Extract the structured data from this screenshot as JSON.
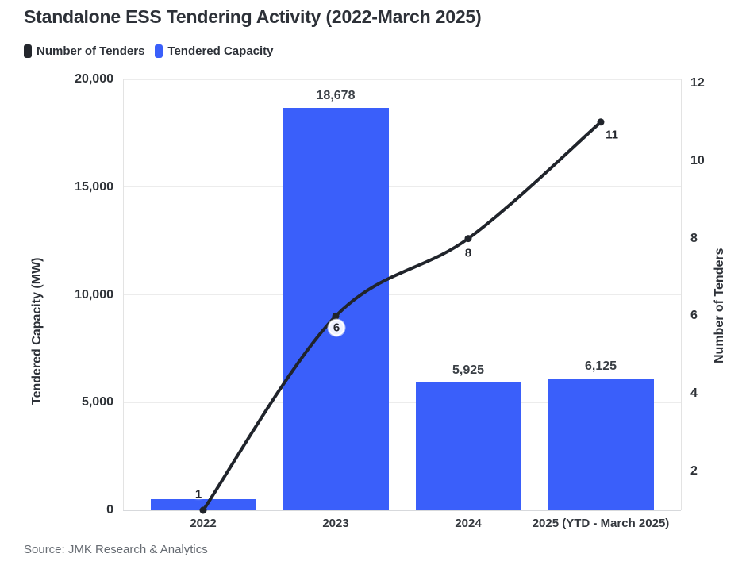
{
  "title": "Standalone ESS Tendering Activity (2022-March 2025)",
  "source": "Source: JMK Research & Analytics",
  "legend": {
    "items": [
      {
        "label": "Number of Tenders",
        "color": "#24272d"
      },
      {
        "label": "Tendered Capacity",
        "color": "#3a5ffa"
      }
    ]
  },
  "chart_data": {
    "type": "combo-bar-line",
    "title": "Standalone ESS Tendering Activity (2022-March 2025)",
    "categories": [
      "2022",
      "2023",
      "2024",
      "2025 (YTD - March 2025)"
    ],
    "series": [
      {
        "name": "Tendered Capacity",
        "chart": "bar",
        "axis": "left",
        "color": "#3a5ffa",
        "values": [
          500,
          18678,
          5925,
          6125
        ],
        "value_labels": [
          "",
          "18,678",
          "5,925",
          "6,125"
        ]
      },
      {
        "name": "Number of Tenders",
        "chart": "line",
        "axis": "right",
        "color": "#20242b",
        "values": [
          1,
          6,
          8,
          11
        ],
        "point_labels": [
          {
            "text": "1",
            "dx": -6,
            "dy": -20,
            "badge": false
          },
          {
            "text": "6",
            "dx": 1,
            "dy": 15,
            "badge": true
          },
          {
            "text": "8",
            "dx": 0,
            "dy": 18,
            "badge": false
          },
          {
            "text": "11",
            "dx": 14,
            "dy": 16,
            "badge": false
          }
        ]
      }
    ],
    "left_axis": {
      "label": "Tendered Capacity (MW)",
      "tick_labels": [
        "0",
        "5,000",
        "10,000",
        "15,000",
        "20,000"
      ],
      "tick_values": [
        0,
        5000,
        10000,
        15000,
        20000
      ],
      "min": 0,
      "max": 20000
    },
    "right_axis": {
      "label": "Number of Tenders",
      "tick_labels": [
        "2",
        "4",
        "6",
        "8",
        "10",
        "12"
      ],
      "tick_values": [
        2,
        4,
        6,
        8,
        10,
        12
      ],
      "min": 1,
      "max": 12.1
    },
    "grid": true,
    "legend_position": "top-left"
  }
}
